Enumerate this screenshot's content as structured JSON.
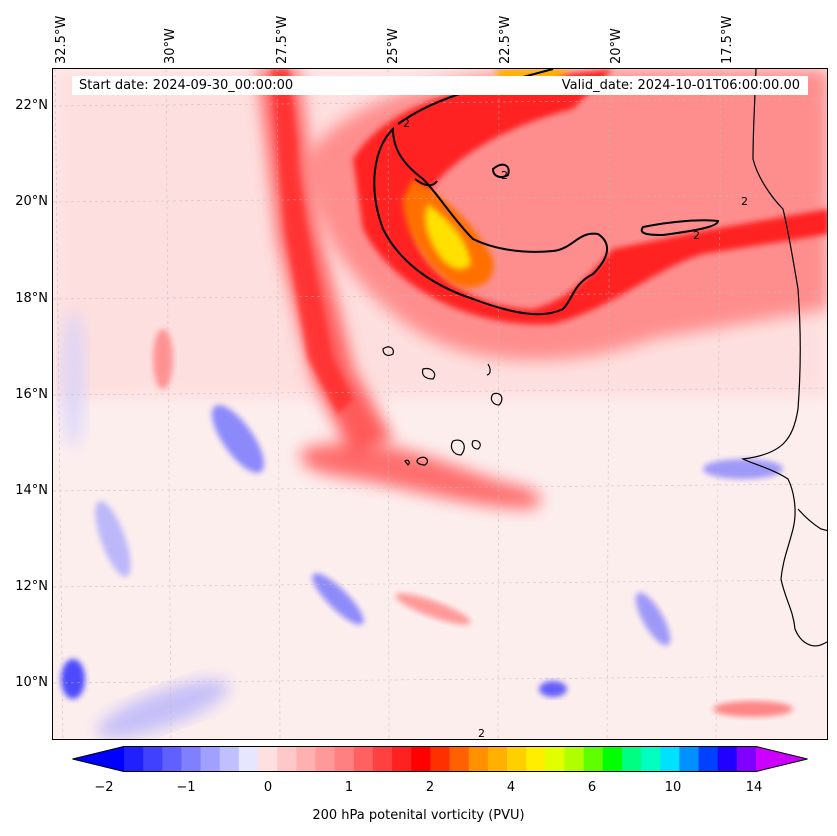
{
  "header": {
    "start_date": "Start date: 2024-09-30_00:00:00",
    "valid_date": "Valid_date: 2024-10-01T06:00:00.00"
  },
  "axes": {
    "lon_labels": [
      "32.5°W",
      "30°W",
      "27.5°W",
      "25°W",
      "22.5°W",
      "20°W",
      "17.5°W"
    ],
    "lat_labels": [
      "22°N",
      "20°N",
      "18°N",
      "16°N",
      "14°N",
      "12°N",
      "10°N"
    ]
  },
  "contour_labels": [
    "2",
    "2",
    "2",
    "2",
    "2"
  ],
  "colorbar": {
    "label": "200 hPa potenital vorticity (PVU)",
    "ticks": [
      "−2",
      "−1",
      "0",
      "1",
      "2",
      "4",
      "6",
      "10",
      "14"
    ],
    "colors": [
      "#0000ff",
      "#2020ff",
      "#4040ff",
      "#6060ff",
      "#8080ff",
      "#a0a0ff",
      "#c0c0ff",
      "#e6e6ff",
      "#ffe0e0",
      "#ffc8c8",
      "#ffb0b0",
      "#ff9898",
      "#ff8080",
      "#ff6060",
      "#ff4040",
      "#ff2020",
      "#ff0000",
      "#ff3000",
      "#ff6000",
      "#ff9000",
      "#ffb000",
      "#ffd000",
      "#ffee00",
      "#e0ff00",
      "#b0ff00",
      "#60ff00",
      "#00ff00",
      "#00ff80",
      "#00ffc0",
      "#00e0ff",
      "#0090ff",
      "#0040ff",
      "#2000ff",
      "#8000ff",
      "#cc00ff"
    ]
  },
  "colors": {
    "background_pv": "#fdeeee",
    "contour": "#000000",
    "coastline": "#000000"
  }
}
